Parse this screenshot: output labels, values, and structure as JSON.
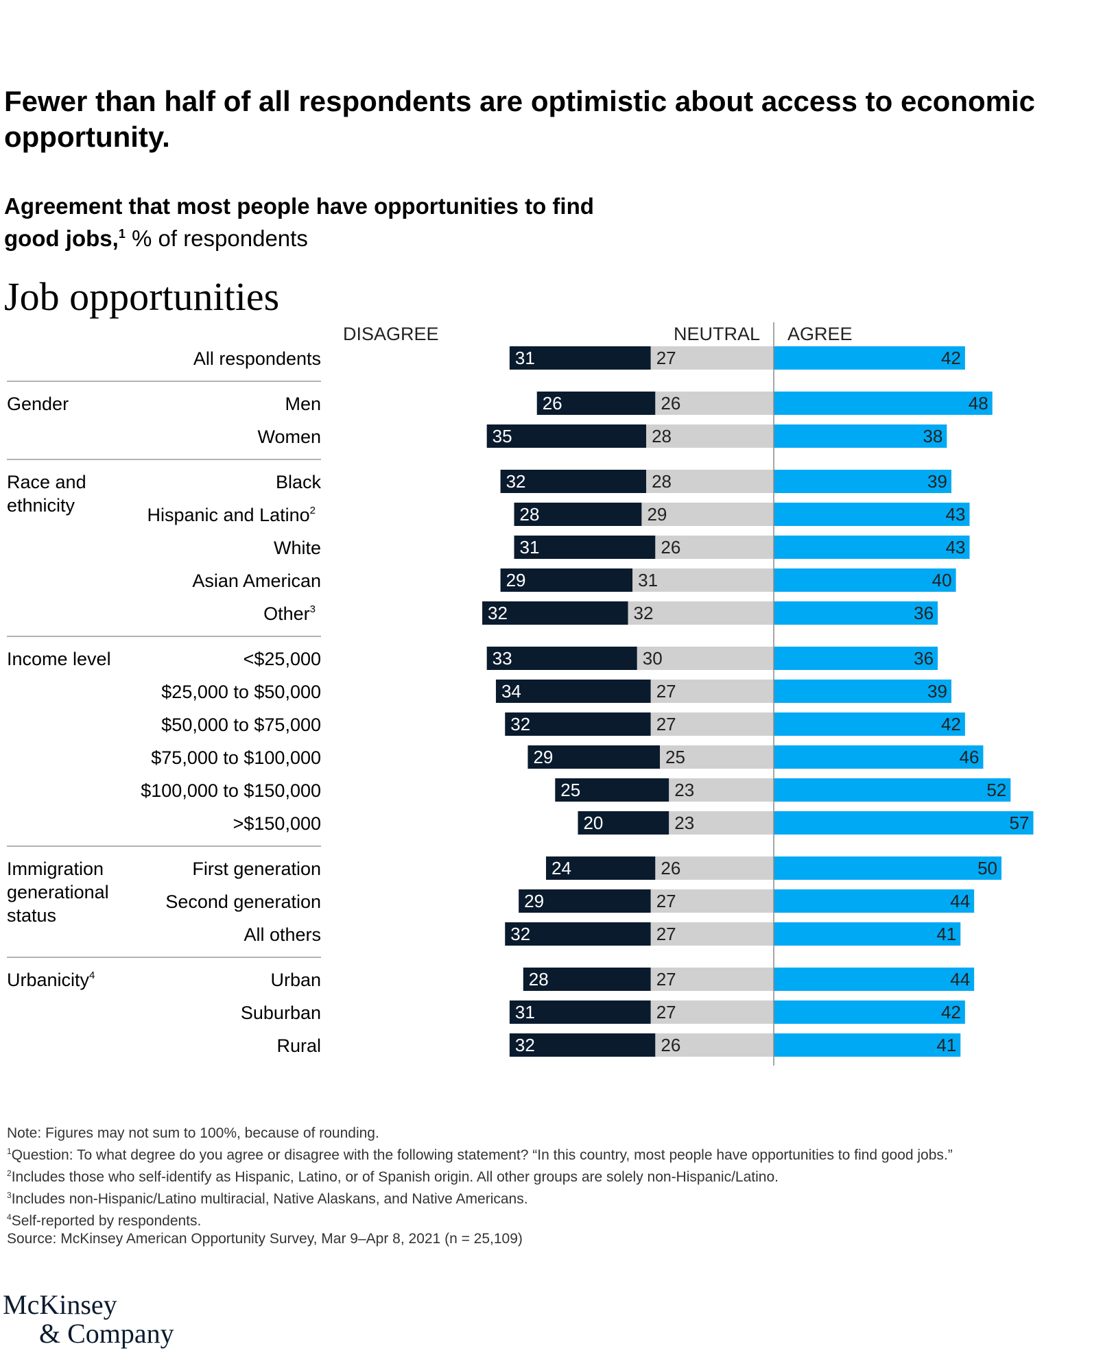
{
  "headline": "Fewer than half of all respondents are optimistic about access to economic opportunity.",
  "subtitle": {
    "bold": "Agreement that most people have opportunities to find good jobs,",
    "sup": "1",
    "normal": " % of respondents"
  },
  "chart_title": "Job opportunities",
  "footnotes": {
    "note": "Note: Figures may not sum to 100%, because of rounding.",
    "f1": "Question: To what degree do you agree or disagree with the following statement? “In this country, most people have opportunities to find good jobs.”",
    "f2": "Includes those who self-identify as Hispanic, Latino, or of Spanish origin. All other groups are solely non-Hispanic/Latino.",
    "f3": "Includes non-Hispanic/Latino multiracial, Native Alaskans, and Native Americans.",
    "f4": "Self-reported by respondents.",
    "source": "Source: McKinsey American Opportunity Survey, Mar 9–Apr 8, 2021 (n = 25,109)"
  },
  "logo": {
    "line1": "McKinsey",
    "line2": "& Company"
  },
  "colors": {
    "disagree": "#0b1b2e",
    "neutral": "#d0d0d0",
    "agree": "#00a9f4",
    "divider": "#888888"
  },
  "chart_data": {
    "type": "bar",
    "orientation": "horizontal diverging stacked",
    "column_headers": {
      "disagree": "DISAGREE",
      "neutral": "NEUTRAL",
      "agree": "AGREE"
    },
    "series_names": [
      "Disagree",
      "Neutral",
      "Agree"
    ],
    "groups": [
      {
        "label": "",
        "rows": [
          {
            "label": "All respondents",
            "disagree": 31,
            "neutral": 27,
            "agree": 42
          }
        ]
      },
      {
        "label": "Gender",
        "rows": [
          {
            "label": "Men",
            "disagree": 26,
            "neutral": 26,
            "agree": 48
          },
          {
            "label": "Women",
            "disagree": 35,
            "neutral": 28,
            "agree": 38
          }
        ]
      },
      {
        "label": "Race and ethnicity",
        "rows": [
          {
            "label": "Black",
            "disagree": 32,
            "neutral": 28,
            "agree": 39
          },
          {
            "label": "Hispanic and Latino",
            "sup": "2",
            "disagree": 28,
            "neutral": 29,
            "agree": 43
          },
          {
            "label": "White",
            "disagree": 31,
            "neutral": 26,
            "agree": 43
          },
          {
            "label": "Asian American",
            "disagree": 29,
            "neutral": 31,
            "agree": 40
          },
          {
            "label": "Other",
            "sup": "3",
            "disagree": 32,
            "neutral": 32,
            "agree": 36
          }
        ]
      },
      {
        "label": "Income level",
        "rows": [
          {
            "label": "<$25,000",
            "disagree": 33,
            "neutral": 30,
            "agree": 36
          },
          {
            "label": "$25,000 to $50,000",
            "disagree": 34,
            "neutral": 27,
            "agree": 39
          },
          {
            "label": "$50,000 to $75,000",
            "disagree": 32,
            "neutral": 27,
            "agree": 42
          },
          {
            "label": "$75,000 to $100,000",
            "disagree": 29,
            "neutral": 25,
            "agree": 46
          },
          {
            "label": "$100,000 to $150,000",
            "disagree": 25,
            "neutral": 23,
            "agree": 52
          },
          {
            "label": ">$150,000",
            "disagree": 20,
            "neutral": 23,
            "agree": 57
          }
        ]
      },
      {
        "label": "Immigration generational status",
        "rows": [
          {
            "label": "First generation",
            "disagree": 24,
            "neutral": 26,
            "agree": 50
          },
          {
            "label": "Second generation",
            "disagree": 29,
            "neutral": 27,
            "agree": 44
          },
          {
            "label": "All others",
            "disagree": 32,
            "neutral": 27,
            "agree": 41
          }
        ]
      },
      {
        "label": "Urbanicity",
        "sup": "4",
        "rows": [
          {
            "label": "Urban",
            "disagree": 28,
            "neutral": 27,
            "agree": 44
          },
          {
            "label": "Suburban",
            "disagree": 31,
            "neutral": 27,
            "agree": 42
          },
          {
            "label": "Rural",
            "disagree": 32,
            "neutral": 26,
            "agree": 41
          }
        ]
      }
    ]
  }
}
